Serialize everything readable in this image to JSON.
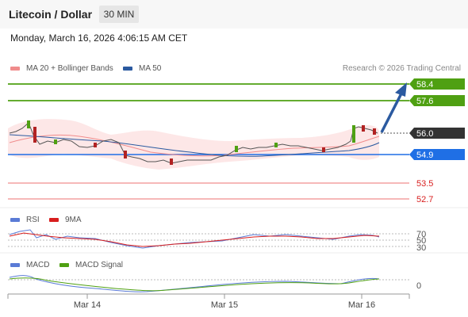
{
  "header": {
    "title": "Litecoin / Dollar",
    "interval": "30 MIN"
  },
  "datetime": "Monday, March 16, 2026 4:06:15 AM CET",
  "legend_main": [
    {
      "label": "MA 20 + Bollinger Bands",
      "color": "#f08c8c"
    },
    {
      "label": "MA 50",
      "color": "#2b5aa0"
    }
  ],
  "credit": "Research © 2026 Trading Central",
  "price_levels": [
    {
      "value": "58.4",
      "kind": "resistance",
      "color": "#4fa012"
    },
    {
      "value": "57.6",
      "kind": "resistance",
      "color": "#4fa012"
    },
    {
      "value": "56.0",
      "kind": "current",
      "color": "#333333"
    },
    {
      "value": "54.9",
      "kind": "pivot",
      "color": "#1f6fe5"
    },
    {
      "value": "53.5",
      "kind": "support",
      "color": "#d81e1e"
    },
    {
      "value": "52.7",
      "kind": "support",
      "color": "#d81e1e"
    }
  ],
  "legend_rsi": [
    {
      "label": "RSI",
      "color": "#5a7bd6"
    },
    {
      "label": "9MA",
      "color": "#d81e1e"
    }
  ],
  "rsi_levels": [
    "70",
    "50",
    "30"
  ],
  "legend_macd": [
    {
      "label": "MACD",
      "color": "#5a7bd6"
    },
    {
      "label": "MACD Signal",
      "color": "#4fa012"
    }
  ],
  "macd_level": "0",
  "x_labels": [
    "Mar 14",
    "Mar 15",
    "Mar 16"
  ],
  "colors": {
    "up_candle": "#4fa012",
    "down_candle": "#b22222",
    "band_fill": "#fde4e4"
  }
}
